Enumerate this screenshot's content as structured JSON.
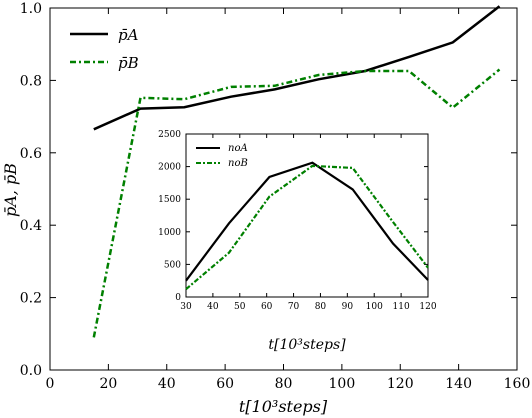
{
  "chart_data": [
    {
      "type": "line",
      "xlabel": "t[10³steps]",
      "ylabel": "p̄A, p̄B",
      "xlim": [
        0,
        160
      ],
      "ylim": [
        0.0,
        1.0
      ],
      "xticks": [
        "0",
        "20",
        "40",
        "60",
        "80",
        "100",
        "120",
        "140",
        "160"
      ],
      "yticks": [
        "0.0",
        "0.2",
        "0.4",
        "0.6",
        "0.8",
        "1.0"
      ],
      "legend_position": "top-left",
      "series": [
        {
          "name": "p̄A",
          "style": "solid",
          "color": "#000000",
          "x": [
            15,
            31,
            46,
            62,
            77,
            92,
            108,
            123,
            138,
            154
          ],
          "y": [
            0.665,
            0.722,
            0.726,
            0.755,
            0.775,
            0.803,
            0.826,
            0.865,
            0.905,
            1.005
          ]
        },
        {
          "name": "p̄B",
          "style": "dotted",
          "color": "#008000",
          "x": [
            15,
            31,
            46,
            62,
            77,
            92,
            108,
            123,
            138,
            154
          ],
          "y": [
            0.09,
            0.752,
            0.748,
            0.782,
            0.785,
            0.815,
            0.826,
            0.826,
            0.725,
            0.83
          ]
        }
      ]
    },
    {
      "type": "line",
      "xlabel": "t[10³steps]",
      "ylabel": "",
      "xlim": [
        30,
        120
      ],
      "ylim": [
        0,
        2500
      ],
      "xticks": [
        "30",
        "40",
        "50",
        "60",
        "70",
        "80",
        "90",
        "100",
        "110",
        "120"
      ],
      "yticks": [
        "0",
        "500",
        "1000",
        "1500",
        "2000",
        "2500"
      ],
      "legend_position": "top-left",
      "series": [
        {
          "name": "noA",
          "style": "solid",
          "color": "#000000",
          "x": [
            30,
            46,
            61,
            77,
            92,
            107,
            120
          ],
          "y": [
            250,
            1130,
            1840,
            2060,
            1650,
            820,
            260
          ]
        },
        {
          "name": "noB",
          "style": "dotted",
          "color": "#008000",
          "x": [
            30,
            46,
            61,
            77,
            92,
            107,
            120
          ],
          "y": [
            120,
            680,
            1540,
            2010,
            1980,
            1150,
            450
          ]
        }
      ]
    }
  ]
}
